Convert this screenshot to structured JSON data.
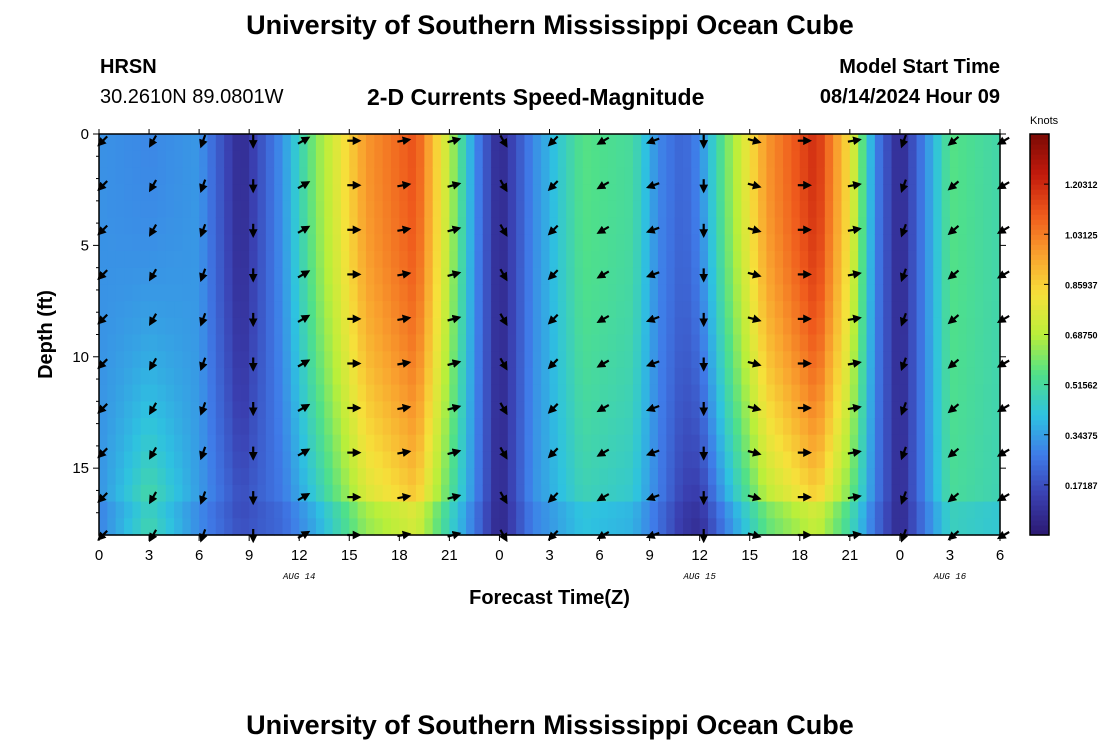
{
  "header": {
    "title": "University of Southern Mississippi Ocean Cube",
    "station": "HRSN",
    "coordinates": "30.2610N  89.0801W",
    "subtitle": "2-D Currents Speed-Magnitude",
    "model_start_label": "Model Start Time",
    "model_start_value": "08/14/2024 Hour 09"
  },
  "footer": {
    "title": "University of Southern Mississippi Ocean Cube"
  },
  "colors": {
    "scale": [
      "#2b1870",
      "#3a3fb0",
      "#3f7be8",
      "#2ec2e0",
      "#4fe08a",
      "#b9ef3a",
      "#f6e13a",
      "#f9a12e",
      "#ef5a1c",
      "#c21a0c",
      "#7a0a04"
    ]
  },
  "chart_data": {
    "type": "heatmap",
    "title": "2-D Currents Speed-Magnitude",
    "xlabel": "Forecast Time(Z)",
    "ylabel": "Depth (ft)",
    "x_hours": [
      0,
      3,
      6,
      9,
      12,
      15,
      18,
      21,
      24,
      27,
      30,
      33,
      36,
      39,
      42,
      45,
      48,
      51,
      54
    ],
    "xtick_labels": [
      "0",
      "3",
      "6",
      "9",
      "12",
      "15",
      "18",
      "21",
      "0",
      "3",
      "6",
      "9",
      "12",
      "15",
      "18",
      "21",
      "0",
      "3",
      "6"
    ],
    "date_labels": [
      {
        "hour": 12,
        "label": "AUG 14"
      },
      {
        "hour": 36,
        "label": "AUG 15"
      },
      {
        "hour": 51,
        "label": "AUG 16"
      }
    ],
    "ylim": [
      0,
      18
    ],
    "yticks": [
      0,
      5,
      10,
      15
    ],
    "ytick_labels": [
      "0",
      "5",
      "10",
      "15"
    ],
    "colorbar": {
      "unit_label": "Knots",
      "range": [
        0,
        1.375
      ],
      "tick_values": [
        0.17187,
        0.34375,
        0.51562,
        0.6875,
        0.85937,
        1.03125,
        1.20312
      ],
      "tick_labels": [
        "0.17187",
        "0.34375",
        "0.51562",
        "0.68750",
        "0.85937",
        "1.03125",
        "1.20312"
      ]
    },
    "speed_by_time": [
      {
        "hour": 0,
        "speed": 0.32,
        "deep_speed": 0.32
      },
      {
        "hour": 3,
        "speed": 0.3,
        "deep_speed": 0.56
      },
      {
        "hour": 6,
        "speed": 0.33,
        "deep_speed": 0.34
      },
      {
        "hour": 8.5,
        "speed": 0.06,
        "deep_speed": 0.2
      },
      {
        "hour": 11,
        "speed": 0.32,
        "deep_speed": 0.26
      },
      {
        "hour": 13,
        "speed": 0.62,
        "deep_speed": 0.4
      },
      {
        "hour": 16,
        "speed": 0.98,
        "deep_speed": 0.7
      },
      {
        "hour": 19,
        "speed": 1.12,
        "deep_speed": 0.82
      },
      {
        "hour": 21,
        "speed": 0.7,
        "deep_speed": 0.52
      },
      {
        "hour": 22.5,
        "speed": 0.32,
        "deep_speed": 0.3
      },
      {
        "hour": 24,
        "speed": 0.05,
        "deep_speed": 0.05
      },
      {
        "hour": 26,
        "speed": 0.3,
        "deep_speed": 0.32
      },
      {
        "hour": 29,
        "speed": 0.56,
        "deep_speed": 0.46
      },
      {
        "hour": 32,
        "speed": 0.52,
        "deep_speed": 0.42
      },
      {
        "hour": 33.5,
        "speed": 0.3,
        "deep_speed": 0.28
      },
      {
        "hour": 35,
        "speed": 0.22,
        "deep_speed": 0.12
      },
      {
        "hour": 36,
        "speed": 0.3,
        "deep_speed": 0.08
      },
      {
        "hour": 37.5,
        "speed": 0.58,
        "deep_speed": 0.3
      },
      {
        "hour": 40,
        "speed": 0.98,
        "deep_speed": 0.62
      },
      {
        "hour": 43,
        "speed": 1.2,
        "deep_speed": 0.78
      },
      {
        "hour": 45,
        "speed": 0.82,
        "deep_speed": 0.55
      },
      {
        "hour": 46.5,
        "speed": 0.3,
        "deep_speed": 0.28
      },
      {
        "hour": 48,
        "speed": 0.05,
        "deep_speed": 0.06
      },
      {
        "hour": 49.5,
        "speed": 0.3,
        "deep_speed": 0.3
      },
      {
        "hour": 51,
        "speed": 0.56,
        "deep_speed": 0.52
      },
      {
        "hour": 54,
        "speed": 0.5,
        "deep_speed": 0.48
      }
    ],
    "arrow_depths": [
      0.3,
      2.3,
      4.3,
      6.3,
      8.3,
      10.3,
      12.3,
      14.3,
      16.3,
      18
    ],
    "arrow_directions_deg_by_time": [
      {
        "hour": 0,
        "deg": 225
      },
      {
        "hour": 3,
        "deg": 210
      },
      {
        "hour": 6,
        "deg": 200
      },
      {
        "hour": 9,
        "deg": 180
      },
      {
        "hour": 12,
        "deg": 60
      },
      {
        "hour": 15,
        "deg": 90
      },
      {
        "hour": 18,
        "deg": 80
      },
      {
        "hour": 21,
        "deg": 75
      },
      {
        "hour": 24,
        "deg": 150
      },
      {
        "hour": 27,
        "deg": 225
      },
      {
        "hour": 30,
        "deg": 240
      },
      {
        "hour": 33,
        "deg": 250
      },
      {
        "hour": 36,
        "deg": 180
      },
      {
        "hour": 39,
        "deg": 105
      },
      {
        "hour": 42,
        "deg": 90
      },
      {
        "hour": 45,
        "deg": 80
      },
      {
        "hour": 48,
        "deg": 200
      },
      {
        "hour": 51,
        "deg": 230
      },
      {
        "hour": 54,
        "deg": 240
      }
    ]
  }
}
